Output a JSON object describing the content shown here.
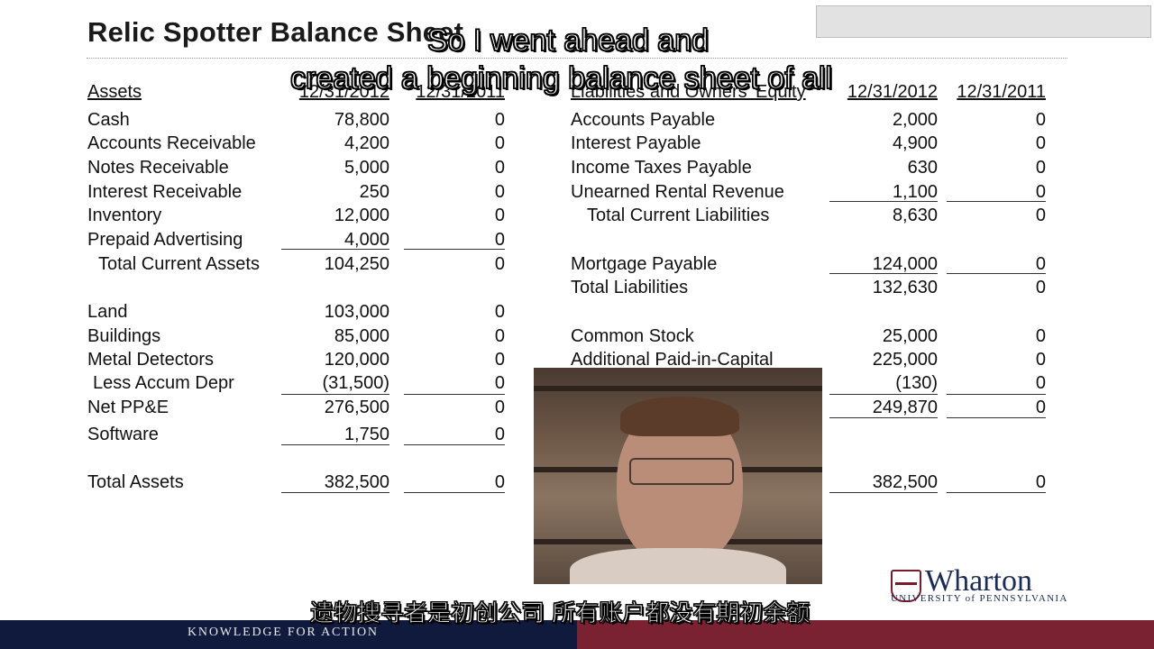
{
  "slide": {
    "title": "Relic Spotter Balance Sheet",
    "assets_header": "Assets",
    "liab_header": "Liabilities and Owners' Equity",
    "date_2012": "12/31/2012",
    "date_2011": "12/31/2011"
  },
  "assets": [
    {
      "label": "Cash",
      "v2012": "78,800",
      "v2011": "0"
    },
    {
      "label": "Accounts Receivable",
      "v2012": "4,200",
      "v2011": "0"
    },
    {
      "label": "Notes Receivable",
      "v2012": "5,000",
      "v2011": "0"
    },
    {
      "label": "Interest Receivable",
      "v2012": "250",
      "v2011": "0"
    },
    {
      "label": "Inventory",
      "v2012": "12,000",
      "v2011": "0"
    },
    {
      "label": "Prepaid Advertising",
      "v2012": "4,000",
      "v2011": "0"
    },
    {
      "label": "Total Current Assets",
      "v2012": "104,250",
      "v2011": "0"
    },
    {
      "label": "Land",
      "v2012": "103,000",
      "v2011": "0"
    },
    {
      "label": "Buildings",
      "v2012": "85,000",
      "v2011": "0"
    },
    {
      "label": "Metal Detectors",
      "v2012": "120,000",
      "v2011": "0"
    },
    {
      "label": "Less Accum Depr",
      "v2012": "(31,500)",
      "v2011": "0"
    },
    {
      "label": "Net PP&E",
      "v2012": "276,500",
      "v2011": "0"
    },
    {
      "label": "Software",
      "v2012": "1,750",
      "v2011": "0"
    },
    {
      "label": "Total Assets",
      "v2012": "382,500",
      "v2011": "0"
    }
  ],
  "liabilities": [
    {
      "label": "Accounts Payable",
      "v2012": "2,000",
      "v2011": "0"
    },
    {
      "label": "Interest Payable",
      "v2012": "4,900",
      "v2011": "0"
    },
    {
      "label": "Income Taxes Payable",
      "v2012": "630",
      "v2011": "0"
    },
    {
      "label": "Unearned Rental Revenue",
      "v2012": "1,100",
      "v2011": "0"
    },
    {
      "label": "Total Current Liabilities",
      "v2012": "8,630",
      "v2011": "0"
    },
    {
      "label": "Mortgage Payable",
      "v2012": "124,000",
      "v2011": "0"
    },
    {
      "label": "Total Liabilities",
      "v2012": "132,630",
      "v2011": "0"
    },
    {
      "label": "Common Stock",
      "v2012": "25,000",
      "v2011": "0"
    },
    {
      "label": "Additional Paid-in-Capital",
      "v2012": "225,000",
      "v2011": "0"
    },
    {
      "label": "",
      "v2012": "(130)",
      "v2011": "0"
    },
    {
      "label": "",
      "v2012": "249,870",
      "v2011": "0"
    },
    {
      "label": "",
      "v2012": "382,500",
      "v2011": "0"
    }
  ],
  "captions": {
    "english_line1": "So I went ahead and",
    "english_line2": "created a beginning balance sheet of all",
    "chinese": "遗物搜寻者是初创公司 所有账户都没有期初余额"
  },
  "branding": {
    "logo_word": "Wharton",
    "logo_sub": "UNIVERSITY of PENNSYLVANIA",
    "footer_text": "KNOWLEDGE FOR ACTION",
    "navy": "#0f1a3d",
    "maroon": "#7b2232"
  }
}
